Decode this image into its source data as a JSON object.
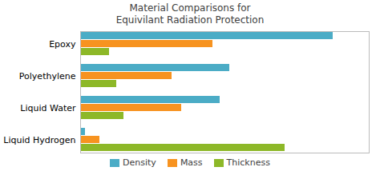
{
  "chart_data": {
    "type": "bar",
    "orientation": "horizontal",
    "title": "Material Comparisons for\nEquivilant Radiation Protection",
    "categories": [
      "Epoxy",
      "Polyethylene",
      "Liquid Water",
      "Liquid Hydrogen"
    ],
    "series": [
      {
        "name": "Density",
        "color": "#4bacc6",
        "values": [
          10.5,
          6.2,
          5.8,
          0.2
        ]
      },
      {
        "name": "Mass",
        "color": "#f79320",
        "values": [
          5.5,
          3.8,
          4.2,
          0.8
        ]
      },
      {
        "name": "Thickness",
        "color": "#8db828",
        "values": [
          1.2,
          1.5,
          1.8,
          8.5
        ]
      }
    ],
    "xlim": [
      0,
      12
    ],
    "xticks": [],
    "grid": false,
    "tick_labels": "y",
    "legend": "bottom"
  }
}
